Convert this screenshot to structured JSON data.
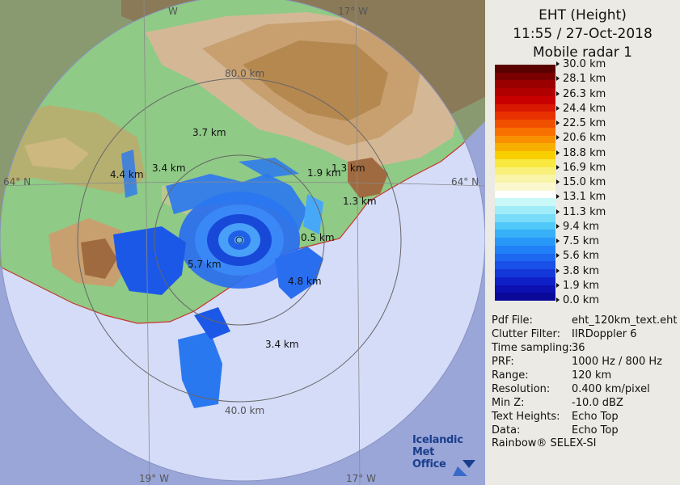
{
  "header": {
    "title_line1": "EHT (Height)",
    "title_line2": "11:55 / 27-Oct-2018",
    "title_line3": "Mobile radar 1"
  },
  "legend": {
    "colors": [
      "#5a0000",
      "#7a0000",
      "#9a0000",
      "#b00000",
      "#c80000",
      "#d81800",
      "#e83000",
      "#f05000",
      "#f87000",
      "#f89000",
      "#f8b000",
      "#f8d000",
      "#f8e840",
      "#f8f078",
      "#f8f4a8",
      "#fbf8d0",
      "#ffffff",
      "#c8f8f8",
      "#a0ecf8",
      "#78dcf8",
      "#50c8f8",
      "#38b0f8",
      "#2898f8",
      "#2080f8",
      "#1c68f0",
      "#1850e8",
      "#1438d8",
      "#1020c8",
      "#0c10b0",
      "#0a0898"
    ],
    "ticks": [
      "30.0 km",
      "28.1 km",
      "26.3 km",
      "24.4 km",
      "22.5 km",
      "20.6 km",
      "18.8 km",
      "16.9 km",
      "15.0 km",
      "13.1 km",
      "11.3 km",
      "9.4 km",
      "7.5 km",
      "5.6 km",
      "3.8 km",
      "1.9 km",
      "0.0 km"
    ]
  },
  "info": [
    {
      "key": "Pdf File:",
      "value": "eht_120km_text.eht"
    },
    {
      "key": "Clutter Filter:",
      "value": "IIRDoppler 6"
    },
    {
      "key": "Time sampling:",
      "value": "36"
    },
    {
      "key": "PRF:",
      "value": "1000 Hz / 800 Hz"
    },
    {
      "key": "Range:",
      "value": "120 km"
    },
    {
      "key": "Resolution:",
      "value": "0.400 km/pixel"
    },
    {
      "key": "Min Z:",
      "value": "-10.0 dBZ"
    },
    {
      "key": "Text Heights:",
      "value": "Echo Top"
    },
    {
      "key": "Data:",
      "value": "Echo Top"
    }
  ],
  "footer": {
    "vendor": "Rainbow® SELEX-SI",
    "logo_line1": "Icelandic Met",
    "logo_line2": "Office"
  },
  "map": {
    "graticule": {
      "lat_left": "64° N",
      "lat_right": "64° N",
      "lon_top_left": "W",
      "lon_top_right": "17° W",
      "lon_bottom_left": "19° W",
      "lon_bottom_right": "17° W"
    },
    "range_rings": {
      "ring_80": "80.0 km",
      "ring_40": "40.0 km"
    },
    "height_labels": [
      {
        "id": "h1",
        "text": "3.7 km"
      },
      {
        "id": "h2",
        "text": "4.4 km"
      },
      {
        "id": "h3",
        "text": "3.4 km"
      },
      {
        "id": "h4",
        "text": "1.9 km"
      },
      {
        "id": "h5",
        "text": "1.3 km"
      },
      {
        "id": "h6",
        "text": "1.3 km"
      },
      {
        "id": "h7",
        "text": "0.5 km"
      },
      {
        "id": "h8",
        "text": "5.7 km"
      },
      {
        "id": "h9",
        "text": "4.8 km"
      },
      {
        "id": "h10",
        "text": "3.4 km"
      }
    ]
  }
}
